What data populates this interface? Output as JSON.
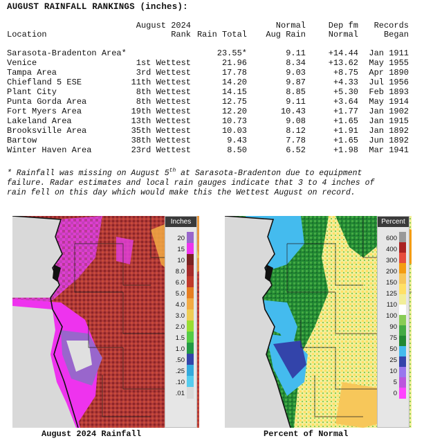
{
  "title": "AUGUST RAINFALL RANKINGS (inches):",
  "headers": {
    "location": "Location",
    "rank_top": "August 2024",
    "rank": "Rank",
    "total_top": "",
    "total": "Rain Total",
    "normal_top": "Normal",
    "normal": "Aug Rain",
    "dep_top": "Dep fm",
    "dep": "Normal",
    "rec_top": "Records",
    "rec": "Began"
  },
  "rows": [
    {
      "location": "Sarasota-Bradenton Area*",
      "rank": "",
      "total": "23.55*",
      "normal": "9.11",
      "dep": "+14.44",
      "began": "Jan 1911"
    },
    {
      "location": "Venice",
      "rank": "1st Wettest",
      "total": "21.96",
      "normal": "8.34",
      "dep": "+13.62",
      "began": "May 1955"
    },
    {
      "location": "Tampa Area",
      "rank": "3rd Wettest",
      "total": "17.78",
      "normal": "9.03",
      "dep": "+8.75",
      "began": "Apr 1890"
    },
    {
      "location": "Chiefland 5 ESE",
      "rank": "11th Wettest",
      "total": "14.20",
      "normal": "9.87",
      "dep": "+4.33",
      "began": "Jul 1956"
    },
    {
      "location": "Plant City",
      "rank": "8th Wettest",
      "total": "14.15",
      "normal": "8.85",
      "dep": "+5.30",
      "began": "Feb 1893"
    },
    {
      "location": "Punta Gorda Area",
      "rank": "8th Wettest",
      "total": "12.75",
      "normal": "9.11",
      "dep": "+3.64",
      "began": "May 1914"
    },
    {
      "location": "Fort Myers Area",
      "rank": "19th Wettest",
      "total": "12.20",
      "normal": "10.43",
      "dep": "+1.77",
      "began": "Jan 1902"
    },
    {
      "location": "Lakeland Area",
      "rank": "13th Wettest",
      "total": "10.73",
      "normal": "9.08",
      "dep": "+1.65",
      "began": "Jan 1915"
    },
    {
      "location": "Brooksville Area",
      "rank": "35th Wettest",
      "total": "10.03",
      "normal": "8.12",
      "dep": "+1.91",
      "began": "Jan 1892"
    },
    {
      "location": "Bartow",
      "rank": "38th Wettest",
      "total": "9.43",
      "normal": "7.78",
      "dep": "+1.65",
      "began": "Jun 1892"
    },
    {
      "location": "Winter Haven Area",
      "rank": "23rd Wettest",
      "total": "8.50",
      "normal": "6.52",
      "dep": "+1.98",
      "began": "Mar 1941"
    }
  ],
  "note": {
    "line1_a": "* Rainfall was missing on August 5",
    "line1_sup": "th",
    "line1_b": " at Sarasota-Bradenton due to equipment",
    "line2": "failure. Radar estimates and local rain gauges indicate that 3 to 4 inches of",
    "line3": "rain fell on this day which would make this the Wettest August on record."
  },
  "rain_legend": {
    "title": "Inches",
    "labels": [
      "20",
      "15",
      "10",
      "8.0",
      "6.0",
      "5.0",
      "4.0",
      "3.0",
      "2.0",
      "1.5",
      "1.0",
      ".50",
      ".25",
      ".10",
      ".01"
    ],
    "colors": [
      "#d9d9d9",
      "#55ccee",
      "#33aadd",
      "#3344aa",
      "#229944",
      "#55cc44",
      "#99dd33",
      "#eecc55",
      "#f2aa44",
      "#e67e22",
      "#c0392b",
      "#a52a2a",
      "#7a2222",
      "#ee33ee",
      "#9966cc"
    ]
  },
  "pct_legend": {
    "title": "Percent",
    "labels": [
      "600",
      "400",
      "300",
      "200",
      "150",
      "125",
      "110",
      "100",
      "90",
      "75",
      "50",
      "25",
      "10",
      "5",
      "0"
    ],
    "colors": [
      "#ff44ff",
      "#bb55dd",
      "#9977ee",
      "#3344aa",
      "#44bbee",
      "#228833",
      "#44aa44",
      "#88cc55",
      "#ffffff",
      "#f2ee99",
      "#ffe066",
      "#f7c75a",
      "#f39c12",
      "#e74c3c",
      "#aa2222",
      "#999999"
    ]
  },
  "captions": {
    "left": "August 2024 Rainfall",
    "right": "Percent of Normal"
  }
}
